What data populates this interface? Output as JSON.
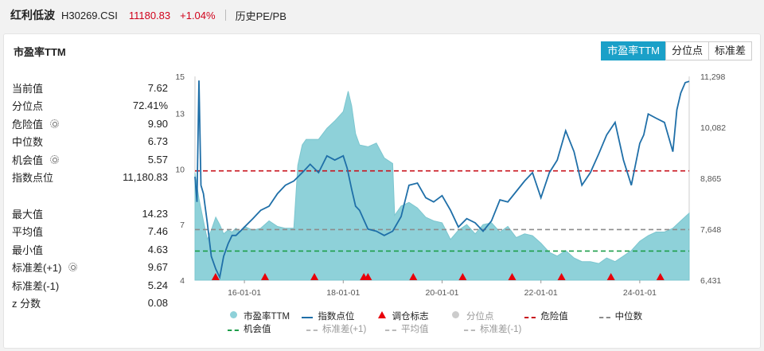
{
  "header": {
    "name": "红利低波",
    "code": "H30269.CSI",
    "price": "11180.83",
    "change": "+1.04%",
    "link": "历史PE/PB"
  },
  "panel": {
    "title": "市盈率TTM",
    "tabs": [
      "市盈率TTM",
      "分位点",
      "标准差"
    ]
  },
  "stats": {
    "current_label": "当前值",
    "current_value": "7.62",
    "pct_label": "分位点",
    "pct_value": "72.41%",
    "danger_label": "危险值",
    "danger_value": "9.90",
    "median_label": "中位数",
    "median_value": "6.73",
    "chance_label": "机会值",
    "chance_value": "5.57",
    "index_label": "指数点位",
    "index_value": "11,180.83",
    "max_label": "最大值",
    "max_value": "14.23",
    "avg_label": "平均值",
    "avg_value": "7.46",
    "min_label": "最小值",
    "min_value": "4.63",
    "sdp_label": "标准差(+1)",
    "sdp_value": "9.67",
    "sdm_label": "标准差(-1)",
    "sdm_value": "5.24",
    "z_label": "z 分数",
    "z_value": "0.08"
  },
  "legend": {
    "pe": "市盈率TTM",
    "index": "指数点位",
    "marker": "调仓标志",
    "percentile": "分位点",
    "danger": "危险值",
    "median": "中位数",
    "chance": "机会值",
    "sd_plus": "标准差(+1)",
    "avg": "平均值",
    "sd_minus": "标准差(-1)"
  },
  "colors": {
    "pe_fill": "#8ed1d9",
    "index_line": "#1f6fa8",
    "danger": "#c8141e",
    "median": "#8c8c8c",
    "chance": "#1e9e4a",
    "marker": "#e8000b",
    "accent": "#1aa0c8"
  },
  "chart_data": {
    "type": "area",
    "y_left_ticks": [
      4,
      7,
      10,
      13,
      15
    ],
    "y_right_ticks": [
      "6,431",
      "7,648",
      "8,865",
      "10,082",
      "11,298"
    ],
    "x_ticks": [
      "16-01-01",
      "18-01-01",
      "20-01-01",
      "22-01-01",
      "24-01-01"
    ],
    "ylim_left": [
      4,
      15
    ],
    "ylim_right": [
      6431,
      11298
    ],
    "reference_lines": {
      "danger": 9.9,
      "median": 6.73,
      "chance": 5.57
    },
    "pe_series": {
      "name": "市盈率TTM",
      "x": [
        2015.0,
        2015.08,
        2015.17,
        2015.25,
        2015.33,
        2015.42,
        2015.5,
        2015.58,
        2015.67,
        2015.75,
        2015.83,
        2015.92,
        2016.0,
        2016.17,
        2016.33,
        2016.5,
        2016.67,
        2016.83,
        2017.0,
        2017.08,
        2017.17,
        2017.25,
        2017.5,
        2017.67,
        2017.83,
        2018.0,
        2018.1,
        2018.17,
        2018.25,
        2018.33,
        2018.5,
        2018.67,
        2018.83,
        2019.0,
        2019.04,
        2019.17,
        2019.33,
        2019.5,
        2019.67,
        2019.83,
        2020.0,
        2020.17,
        2020.33,
        2020.5,
        2020.67,
        2020.83,
        2021.0,
        2021.17,
        2021.33,
        2021.5,
        2021.67,
        2021.83,
        2022.0,
        2022.17,
        2022.33,
        2022.5,
        2022.67,
        2022.83,
        2023.0,
        2023.17,
        2023.33,
        2023.5,
        2023.67,
        2023.83,
        2024.0,
        2024.17,
        2024.33,
        2024.5,
        2024.67,
        2024.83,
        2025.0
      ],
      "values": [
        9.8,
        8.4,
        7.2,
        6.2,
        6.7,
        7.4,
        7.0,
        6.5,
        6.7,
        6.6,
        6.8,
        6.6,
        6.9,
        6.7,
        6.8,
        7.2,
        6.9,
        6.8,
        6.8,
        10.2,
        11.3,
        11.6,
        11.6,
        12.2,
        12.6,
        13.1,
        14.2,
        13.4,
        11.9,
        11.3,
        11.2,
        11.4,
        10.6,
        10.3,
        7.5,
        8.0,
        8.2,
        7.9,
        7.4,
        7.2,
        7.1,
        6.2,
        6.7,
        7.0,
        6.5,
        7.0,
        7.1,
        6.6,
        6.9,
        6.3,
        6.5,
        6.4,
        6.0,
        5.5,
        5.3,
        5.6,
        5.2,
        5.0,
        5.0,
        4.9,
        5.2,
        5.0,
        5.3,
        5.6,
        6.1,
        6.4,
        6.6,
        6.6,
        6.8,
        7.2,
        7.62
      ]
    },
    "index_series": {
      "name": "指数点位",
      "x": [
        2015.0,
        2015.04,
        2015.08,
        2015.12,
        2015.17,
        2015.25,
        2015.33,
        2015.42,
        2015.5,
        2015.58,
        2015.67,
        2015.75,
        2015.83,
        2016.0,
        2016.17,
        2016.33,
        2016.5,
        2016.67,
        2016.83,
        2017.0,
        2017.17,
        2017.33,
        2017.5,
        2017.67,
        2017.83,
        2018.0,
        2018.08,
        2018.17,
        2018.25,
        2018.33,
        2018.5,
        2018.67,
        2018.83,
        2019.0,
        2019.17,
        2019.33,
        2019.5,
        2019.67,
        2019.83,
        2020.0,
        2020.17,
        2020.33,
        2020.5,
        2020.67,
        2020.83,
        2021.0,
        2021.17,
        2021.33,
        2021.5,
        2021.67,
        2021.83,
        2022.0,
        2022.17,
        2022.33,
        2022.5,
        2022.67,
        2022.83,
        2023.0,
        2023.17,
        2023.33,
        2023.5,
        2023.67,
        2023.83,
        2024.0,
        2024.08,
        2024.17,
        2024.33,
        2024.5,
        2024.67,
        2024.75,
        2024.83,
        2024.92,
        2025.0
      ],
      "values": [
        8900,
        8300,
        11200,
        8700,
        8500,
        7800,
        7000,
        6700,
        6500,
        7000,
        7300,
        7500,
        7500,
        7700,
        7900,
        8100,
        8200,
        8500,
        8700,
        8800,
        9000,
        9200,
        9000,
        9400,
        9300,
        9400,
        9100,
        8600,
        8200,
        8100,
        7650,
        7600,
        7500,
        7600,
        7950,
        8700,
        8750,
        8400,
        8300,
        8450,
        8100,
        7700,
        7900,
        7800,
        7600,
        7850,
        8350,
        8300,
        8550,
        8800,
        9000,
        8400,
        9000,
        9300,
        10000,
        9500,
        8700,
        9000,
        9450,
        9900,
        10200,
        9300,
        8700,
        9700,
        9900,
        10400,
        10300,
        10200,
        9500,
        10500,
        10900,
        11150,
        11180.83
      ]
    },
    "marker_dates": [
      "2015-06",
      "2016-06",
      "2017-06",
      "2018-06",
      "2018-07",
      "2019-06",
      "2020-06",
      "2021-06",
      "2022-06",
      "2023-06",
      "2024-06"
    ]
  }
}
